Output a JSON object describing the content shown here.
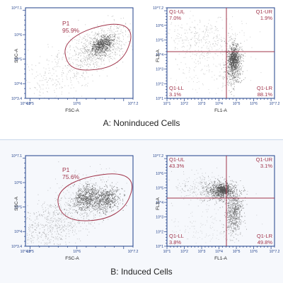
{
  "colors": {
    "frame": "#1f3f8a",
    "gate": "#a0344a",
    "dot": "#555555",
    "caption": "#222222"
  },
  "captions": {
    "a": "A: Noninduced Cells",
    "b": "B: Induced Cells"
  },
  "chart_data": [
    {
      "type": "scatter",
      "panel": "A-left",
      "xlabel": "FSC-A",
      "ylabel": "SSC-A",
      "x_ticks": [
        "10^4.9",
        "10^5",
        "10^6",
        "10^7.2"
      ],
      "y_ticks": [
        "10^3.4",
        "10^4",
        "10^5",
        "10^6",
        "10^7.1"
      ],
      "xlim": [
        4.9,
        7.2
      ],
      "ylim": [
        3.4,
        7.1
      ],
      "scale": "log",
      "gate": {
        "name": "P1",
        "percent": "95.9%"
      }
    },
    {
      "type": "scatter",
      "panel": "A-right",
      "xlabel": "FL1-A",
      "ylabel": "FL3-A",
      "x_ticks": [
        "10^1",
        "10^2",
        "10^3",
        "10^4",
        "10^5",
        "10^6",
        "10^7.2"
      ],
      "y_ticks": [
        "10^1",
        "10^2",
        "10^3",
        "10^4",
        "10^5",
        "10^6",
        "10^7.2"
      ],
      "xlim": [
        1,
        7.2
      ],
      "ylim": [
        1,
        7.2
      ],
      "scale": "log",
      "quadrants": [
        {
          "name": "Q1-UL",
          "percent": "7.0%"
        },
        {
          "name": "Q1-UR",
          "percent": "1.9%"
        },
        {
          "name": "Q1-LL",
          "percent": "3.1%"
        },
        {
          "name": "Q1-LR",
          "percent": "88.1%"
        }
      ]
    },
    {
      "type": "scatter",
      "panel": "B-left",
      "xlabel": "FSC-A",
      "ylabel": "SSC-A",
      "x_ticks": [
        "10^4.9",
        "10^5",
        "10^6",
        "10^7.2"
      ],
      "y_ticks": [
        "10^3.4",
        "10^4",
        "10^5",
        "10^6",
        "10^7.1"
      ],
      "xlim": [
        4.9,
        7.2
      ],
      "ylim": [
        3.4,
        7.1
      ],
      "scale": "log",
      "gate": {
        "name": "P1",
        "percent": "75.6%"
      }
    },
    {
      "type": "scatter",
      "panel": "B-right",
      "xlabel": "FL1-A",
      "ylabel": "FL3-A",
      "x_ticks": [
        "10^1",
        "10^2",
        "10^3",
        "10^4",
        "10^5",
        "10^6",
        "10^7.2"
      ],
      "y_ticks": [
        "10^1",
        "10^2",
        "10^3",
        "10^4",
        "10^5",
        "10^6",
        "10^7.2"
      ],
      "xlim": [
        1,
        7.2
      ],
      "ylim": [
        1,
        7.2
      ],
      "scale": "log",
      "quadrants": [
        {
          "name": "Q1-UL",
          "percent": "43.3%"
        },
        {
          "name": "Q1-UR",
          "percent": "3.1%"
        },
        {
          "name": "Q1-LL",
          "percent": "3.8%"
        },
        {
          "name": "Q1-LR",
          "percent": "49.8%"
        }
      ]
    }
  ]
}
